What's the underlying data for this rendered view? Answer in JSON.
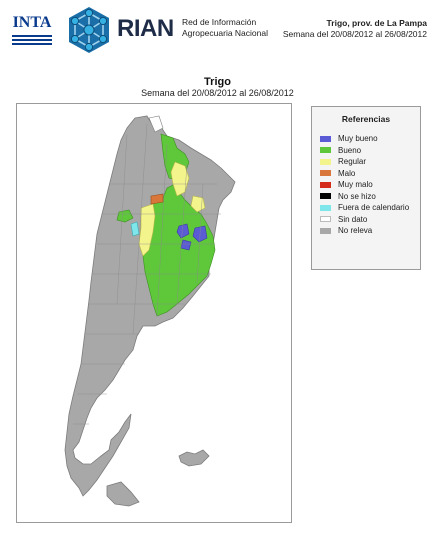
{
  "header": {
    "inta_logo": "INTA",
    "rian_logo": "RIAN",
    "rian_subtitle_line1": "Red de Información",
    "rian_subtitle_line2": "Agropecuaria Nacional",
    "report_title": "Trigo, prov. de La Pampa",
    "report_period": "Semana del 20/08/2012 al 26/08/2012"
  },
  "map": {
    "title": "Trigo",
    "subtitle": "Semana del 20/08/2012 al 26/08/2012"
  },
  "legend": {
    "title": "Referencias",
    "items": [
      {
        "label": "Muy bueno",
        "color": "#5b5bd6"
      },
      {
        "label": "Bueno",
        "color": "#5ec83a"
      },
      {
        "label": "Regular",
        "color": "#f4f48c"
      },
      {
        "label": "Malo",
        "color": "#d9773a"
      },
      {
        "label": "Muy malo",
        "color": "#d42a1a"
      },
      {
        "label": "No se hizo",
        "color": "#000000"
      },
      {
        "label": "Fuera de calendario",
        "color": "#7fe6ec"
      },
      {
        "label": "Sin dato",
        "color": "#ffffff"
      },
      {
        "label": "No releva",
        "color": "#a8a8a8"
      }
    ]
  }
}
